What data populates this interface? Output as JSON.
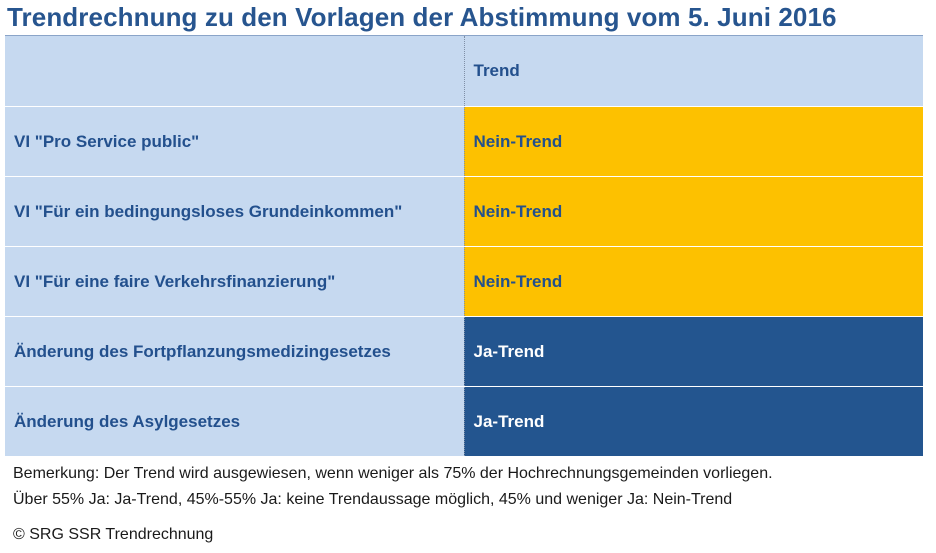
{
  "title": "Trendrechnung zu den Vorlagen der Abstimmung vom 5. Juni 2016",
  "table": {
    "header": {
      "label": "",
      "trend": "Trend"
    },
    "rows": [
      {
        "label": "VI \"Pro Service public\"",
        "trend": "Nein-Trend"
      },
      {
        "label": "VI \"Für ein bedingungsloses Grundeinkommen\"",
        "trend": "Nein-Trend"
      },
      {
        "label": "VI \"Für eine faire Verkehrsfinanzierung\"",
        "trend": "Nein-Trend"
      },
      {
        "label": "Änderung des Fortpflanzungsmedizingesetzes",
        "trend": "Ja-Trend"
      },
      {
        "label": "Änderung des Asylgesetzes",
        "trend": "Ja-Trend"
      }
    ]
  },
  "notes": {
    "line1": "Bemerkung: Der Trend wird ausgewiesen, wenn weniger als 75% der Hochrechnungsgemeinden vorliegen.",
    "line2": "Über 55% Ja: Ja-Trend,  45%-55% Ja: keine Trendaussage möglich,  45% und weniger Ja: Nein-Trend"
  },
  "copyright": "© SRG SSR Trendrechnung",
  "colors": {
    "title": "#27558f",
    "row_bg": "#c6d9f0",
    "nein_bg": "#fdc100",
    "ja_bg": "#23558f"
  }
}
